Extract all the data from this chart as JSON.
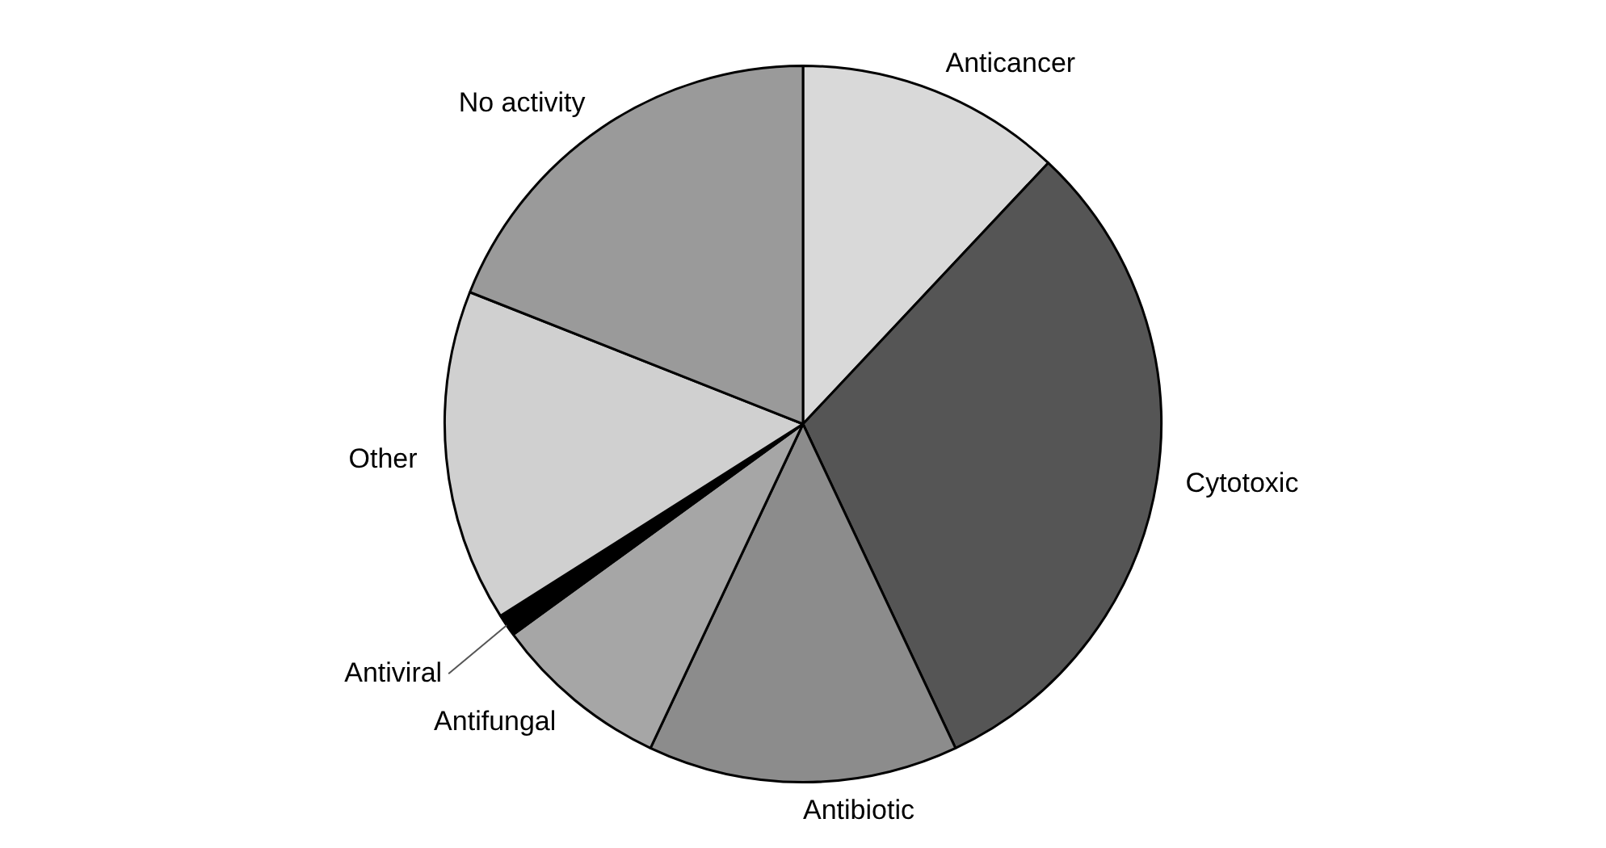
{
  "chart_data": {
    "type": "pie",
    "categories": [
      "Anticancer",
      "Cytotoxic",
      "Antibiotic",
      "Antifungal",
      "Antiviral",
      "Other",
      "No activity"
    ],
    "values": [
      12,
      31,
      14,
      8,
      1,
      15,
      19
    ],
    "colors": [
      "#d9d9d9",
      "#555555",
      "#8c8c8c",
      "#a6a6a6",
      "#000000",
      "#d0d0d0",
      "#9a9a9a"
    ],
    "legend": false
  }
}
